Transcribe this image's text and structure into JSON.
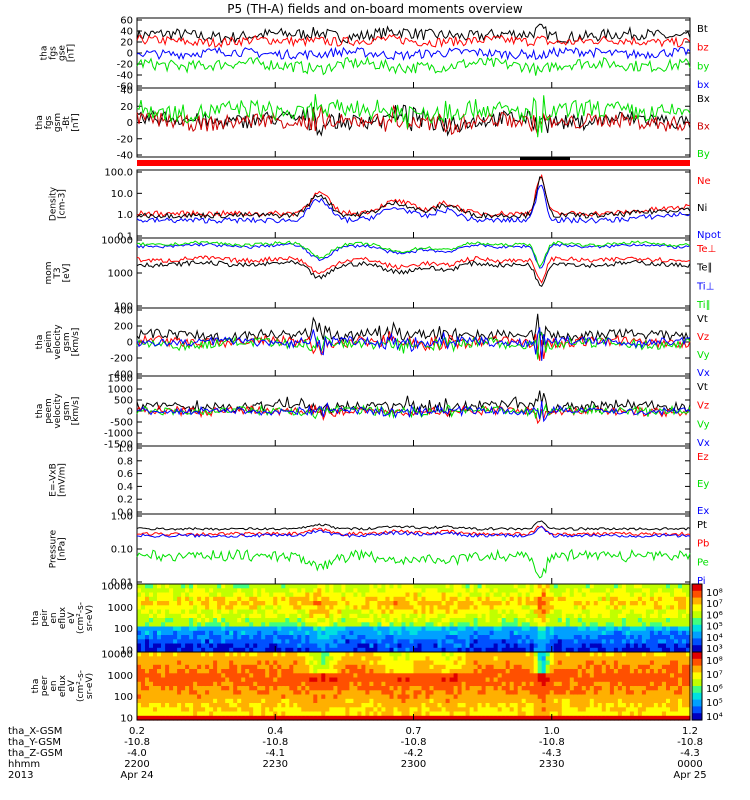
{
  "title": "P5 (TH-A) fields and on-board moments overview",
  "colors": {
    "black": "#000000",
    "red": "#ff0000",
    "green": "#00e000",
    "blue": "#0000ff",
    "grid": "#000000"
  },
  "chart_data": [
    {
      "type": "line",
      "id": "fgs_gse",
      "ylabel": [
        "tha",
        "fgs",
        "gse",
        "[nT]"
      ],
      "yticks": [
        "60",
        "40",
        "20",
        "0",
        "-20",
        "-40",
        "-60"
      ],
      "ylim": [
        -60,
        60
      ],
      "series": [
        {
          "name": "Bt",
          "color": "#000000",
          "level": 30,
          "amp": 10
        },
        {
          "name": "bz",
          "color": "#ff0000",
          "level": 20,
          "amp": 8
        },
        {
          "name": "by",
          "color": "#00e000",
          "level": -20,
          "amp": 10
        },
        {
          "name": "bx",
          "color": "#0000ff",
          "level": 0,
          "amp": 8
        }
      ]
    },
    {
      "type": "line",
      "id": "fgs_gsm",
      "ylabel": [
        "tha",
        "fgs",
        "gsm",
        "-Bt",
        "[nT]"
      ],
      "yticks": [
        "40",
        "20",
        "0",
        "-20",
        "-40"
      ],
      "ylim": [
        -50,
        40
      ],
      "series": [
        {
          "name": "Bx",
          "color": "#000000",
          "level": -2,
          "amp": 10
        },
        {
          "name": "Bx",
          "color": "#cc0000",
          "level": -4,
          "amp": 10
        },
        {
          "name": "By",
          "color": "#00e000",
          "level": 10,
          "amp": 12
        }
      ]
    },
    {
      "type": "line",
      "id": "density",
      "scale": "log",
      "ylabel": [
        "Density",
        "[cm-3]"
      ],
      "yticks": [
        "100.0",
        "10.0",
        "1.0",
        "0.1"
      ],
      "ylim": [
        0.1,
        100
      ],
      "series": [
        {
          "name": "Ne",
          "color": "#ff0000",
          "level": 1.2,
          "amp": 0.4
        },
        {
          "name": "Ni",
          "color": "#000000",
          "level": 1.0,
          "amp": 0.4
        },
        {
          "name": "Npot",
          "color": "#0000ff",
          "level": 0.6,
          "amp": 0.4
        }
      ]
    },
    {
      "type": "line",
      "id": "mom_temp",
      "scale": "log",
      "ylabel": [
        "mom",
        "T3",
        "[eV]"
      ],
      "yticks": [
        "10000",
        "1000",
        "100"
      ],
      "ylim": [
        20,
        10000
      ],
      "series": [
        {
          "name": "Te⊥",
          "color": "#ff0000",
          "level": 1500,
          "amp": 0.3
        },
        {
          "name": "Te∥",
          "color": "#000000",
          "level": 1000,
          "amp": 0.3
        },
        {
          "name": "Ti⊥",
          "color": "#0000ff",
          "level": 5000,
          "amp": 0.2
        },
        {
          "name": "Ti∥",
          "color": "#00e000",
          "level": 6000,
          "amp": 0.2
        }
      ]
    },
    {
      "type": "line",
      "id": "peim_vel",
      "ylabel": [
        "tha",
        "peim",
        "velocity",
        "gsm",
        "[km/s]"
      ],
      "yticks": [
        "400",
        "200",
        "0",
        "-200",
        "-400"
      ],
      "ylim": [
        -400,
        400
      ],
      "series": [
        {
          "name": "Vt",
          "color": "#000000",
          "level": 80,
          "amp": 60
        },
        {
          "name": "Vz",
          "color": "#ff0000",
          "level": 0,
          "amp": 60
        },
        {
          "name": "Vy",
          "color": "#00e000",
          "level": -20,
          "amp": 60
        },
        {
          "name": "Vx",
          "color": "#0000ff",
          "level": 0,
          "amp": 50
        }
      ]
    },
    {
      "type": "line",
      "id": "peem_vel",
      "ylabel": [
        "tha",
        "peem",
        "velocity",
        "gsm",
        "[km/s]"
      ],
      "yticks": [
        "1500",
        "1000",
        "500",
        "0",
        "-500",
        "-1000",
        "-1500"
      ],
      "ylim": [
        -1500,
        1500
      ],
      "series": [
        {
          "name": "Vt",
          "color": "#000000",
          "level": 150,
          "amp": 200
        },
        {
          "name": "Vz",
          "color": "#ff0000",
          "level": 0,
          "amp": 150
        },
        {
          "name": "Vy",
          "color": "#00e000",
          "level": 0,
          "amp": 150
        },
        {
          "name": "Vx",
          "color": "#0000ff",
          "level": 0,
          "amp": 120
        }
      ]
    },
    {
      "type": "line",
      "id": "efield",
      "ylabel": [
        "E=-VxB",
        "[mV/m]"
      ],
      "yticks": [
        "1.0",
        "0.8",
        "0.6",
        "0.4",
        "0.2",
        "0.0"
      ],
      "ylim": [
        0,
        1
      ],
      "series": [
        {
          "name": "Ez",
          "color": "#ff0000"
        },
        {
          "name": "Ey",
          "color": "#00e000"
        },
        {
          "name": "Ex",
          "color": "#0000ff"
        }
      ]
    },
    {
      "type": "line",
      "id": "pressure",
      "scale": "log",
      "ylabel": [
        "Pressure",
        "[nPa]"
      ],
      "yticks": [
        "1.00",
        "0.10",
        "0.01"
      ],
      "ylim": [
        0.007,
        2
      ],
      "series": [
        {
          "name": "Pt",
          "color": "#000000",
          "level": 0.6,
          "amp": 0.15
        },
        {
          "name": "Pb",
          "color": "#ff0000",
          "level": 0.4,
          "amp": 0.2
        },
        {
          "name": "Pe",
          "color": "#00e000",
          "level": 0.07,
          "amp": 0.3
        },
        {
          "name": "Pi",
          "color": "#0000ff",
          "level": 0.35,
          "amp": 0.2
        }
      ]
    },
    {
      "type": "heatmap",
      "id": "peir_spec",
      "ylabel": [
        "tha",
        "peir",
        "en",
        "eflux",
        "eV",
        "(cm²-s-",
        "sr-eV)"
      ],
      "yticks": [
        "10000",
        "1000",
        "100",
        "10"
      ],
      "colorbar": [
        "10⁸",
        "10⁷",
        "10⁶",
        "10⁵",
        "10⁴",
        "10³"
      ]
    },
    {
      "type": "heatmap",
      "id": "peer_spec",
      "ylabel": [
        "tha",
        "peer",
        "en",
        "eflux",
        "eV",
        "(cm²-s-",
        "sr-eV)"
      ],
      "yticks": [
        "10000",
        "1000",
        "100",
        "10"
      ],
      "colorbar": [
        "10⁸",
        "10⁷",
        "10⁶",
        "10⁵",
        "10⁴"
      ]
    }
  ],
  "xaxis": {
    "rows": [
      {
        "label": "tha_X-GSM",
        "values": [
          "0.2",
          "0.4",
          "0.7",
          "1.0",
          "1.2"
        ]
      },
      {
        "label": "tha_Y-GSM",
        "values": [
          "-10.8",
          "-10.8",
          "-10.8",
          "-10.8",
          "-10.8"
        ]
      },
      {
        "label": "tha_Z-GSM",
        "values": [
          "-4.0",
          "-4.1",
          "-4.2",
          "-4.3",
          "-4.3"
        ]
      },
      {
        "label": "hhmm",
        "values": [
          "2200",
          "2230",
          "2300",
          "2330",
          "0000"
        ]
      },
      {
        "label": "2013",
        "values": [
          "Apr 24",
          "",
          "",
          "",
          "Apr 25"
        ]
      }
    ]
  }
}
